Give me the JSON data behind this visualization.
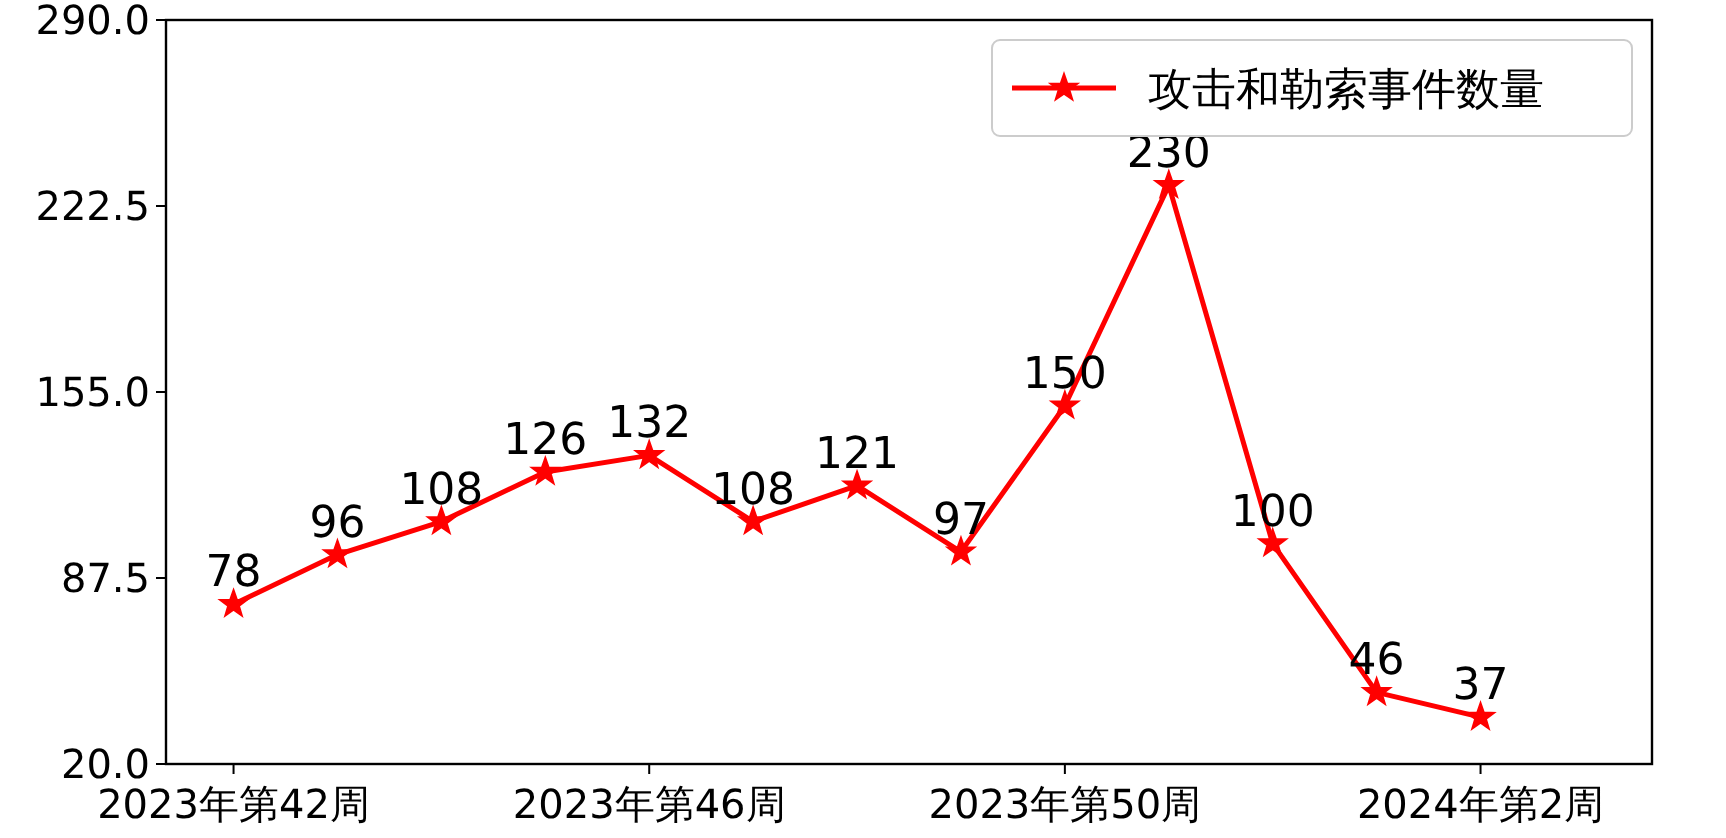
{
  "chart_data": {
    "type": "line",
    "categories": [
      "2023年第42周",
      null,
      null,
      null,
      "2023年第46周",
      null,
      null,
      null,
      "2023年第50周",
      null,
      null,
      null,
      "2024年第2周",
      null
    ],
    "series": [
      {
        "name": "攻击和勒索事件数量",
        "color": "#ff0000",
        "values": [
          78,
          96,
          108,
          126,
          132,
          108,
          121,
          97,
          150,
          230,
          100,
          46,
          37,
          null
        ]
      }
    ],
    "ylim": [
      20,
      290
    ],
    "yticks": [
      {
        "value": 20,
        "label": "20.0"
      },
      {
        "value": 87.5,
        "label": "87.5"
      },
      {
        "value": 155,
        "label": "155.0"
      },
      {
        "value": 222.5,
        "label": "222.5"
      },
      {
        "value": 290,
        "label": "290.0"
      }
    ],
    "marker": "star",
    "line_style": "solid",
    "legend": "top right",
    "grid": false,
    "data_labels": true
  }
}
